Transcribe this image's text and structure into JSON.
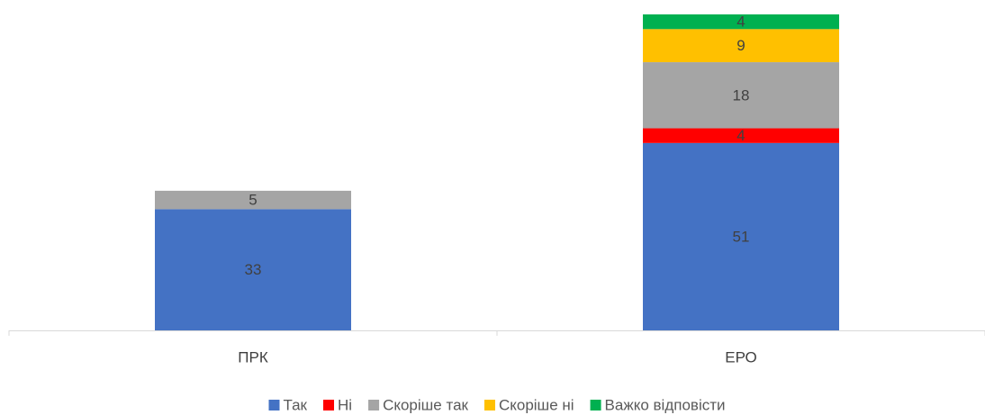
{
  "chart_data": {
    "type": "stacked_bar",
    "categories": [
      "ПРК",
      "ЕРО"
    ],
    "series": [
      {
        "name": "Так",
        "color": "#4472c4",
        "values": [
          33,
          51
        ]
      },
      {
        "name": "Ні",
        "color": "#ff0000",
        "values": [
          null,
          4
        ]
      },
      {
        "name": "Скоріше так",
        "color": "#a5a5a5",
        "values": [
          5,
          18
        ]
      },
      {
        "name": "Скоріше ні",
        "color": "#ffc000",
        "values": [
          null,
          9
        ]
      },
      {
        "name": "Важко відповісти",
        "color": "#00b050",
        "values": [
          null,
          4
        ]
      }
    ],
    "legend": "bottom"
  }
}
